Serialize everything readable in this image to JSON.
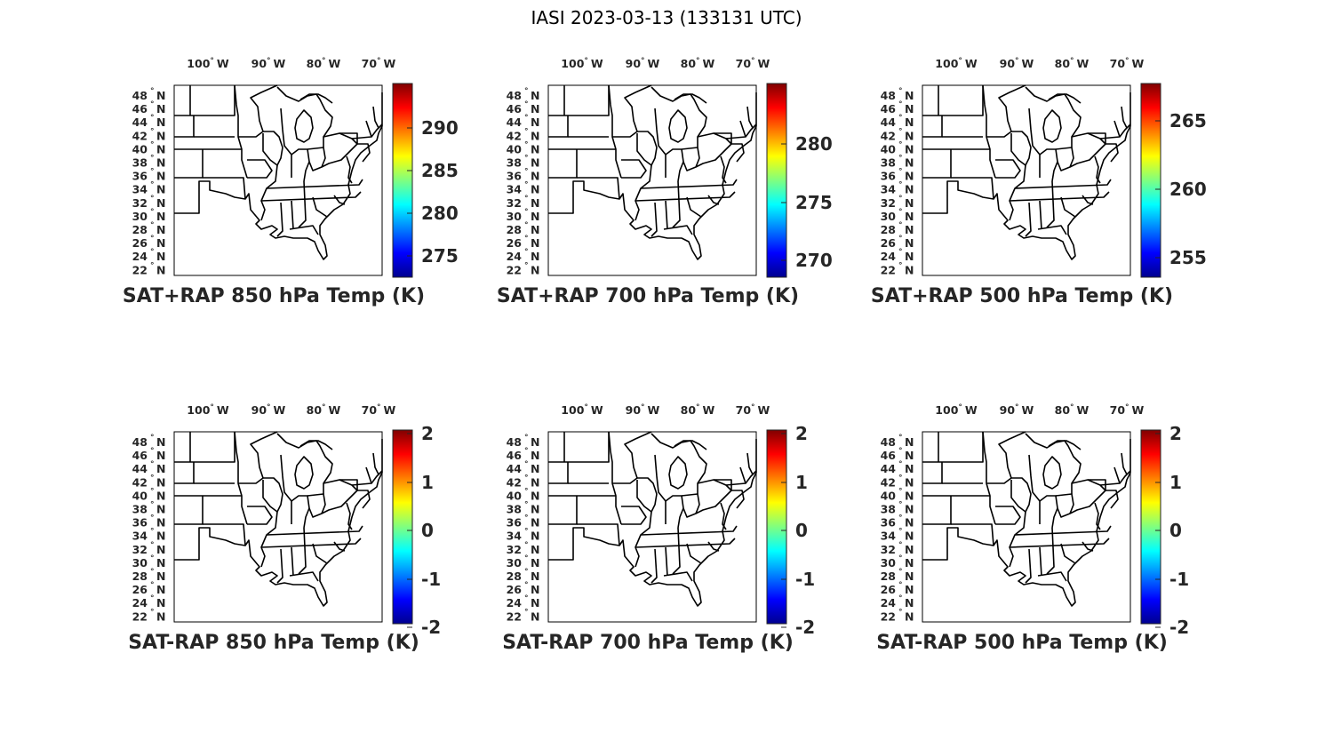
{
  "figure_title": "IASI 2023-03-13 (133131 UTC)",
  "lon_ticks": [
    "100",
    "90",
    "80",
    "70"
  ],
  "lon_hemisphere": "W",
  "lat_ticks": [
    "48",
    "46",
    "44",
    "42",
    "40",
    "38",
    "36",
    "34",
    "32",
    "30",
    "28",
    "26",
    "24",
    "22"
  ],
  "lat_hemisphere": "N",
  "degree_symbol": "°",
  "colormap": "jet",
  "jet_colors": [
    "#00008f",
    "#0000ff",
    "#00ffff",
    "#ffff00",
    "#ff0000",
    "#800000"
  ],
  "panels": [
    {
      "title": "SAT+RAP 850 hPa Temp (K)",
      "colorbar": {
        "ticks": [
          "290",
          "285",
          "280",
          "275"
        ]
      }
    },
    {
      "title": "SAT+RAP 700 hPa Temp (K)",
      "colorbar": {
        "ticks": [
          "280",
          "275",
          "270"
        ]
      }
    },
    {
      "title": "SAT+RAP 500 hPa Temp (K)",
      "colorbar": {
        "ticks": [
          "265",
          "260",
          "255"
        ]
      }
    },
    {
      "title": "SAT-RAP 850 hPa Temp (K)",
      "colorbar": {
        "ticks": [
          "2",
          "1",
          "0",
          "-1",
          "-2"
        ]
      }
    },
    {
      "title": "SAT-RAP 700 hPa Temp (K)",
      "colorbar": {
        "ticks": [
          "2",
          "1",
          "0",
          "-1",
          "-2"
        ]
      }
    },
    {
      "title": "SAT-RAP 500 hPa Temp (K)",
      "colorbar": {
        "ticks": [
          "2",
          "1",
          "0",
          "-1",
          "-2"
        ]
      }
    }
  ]
}
